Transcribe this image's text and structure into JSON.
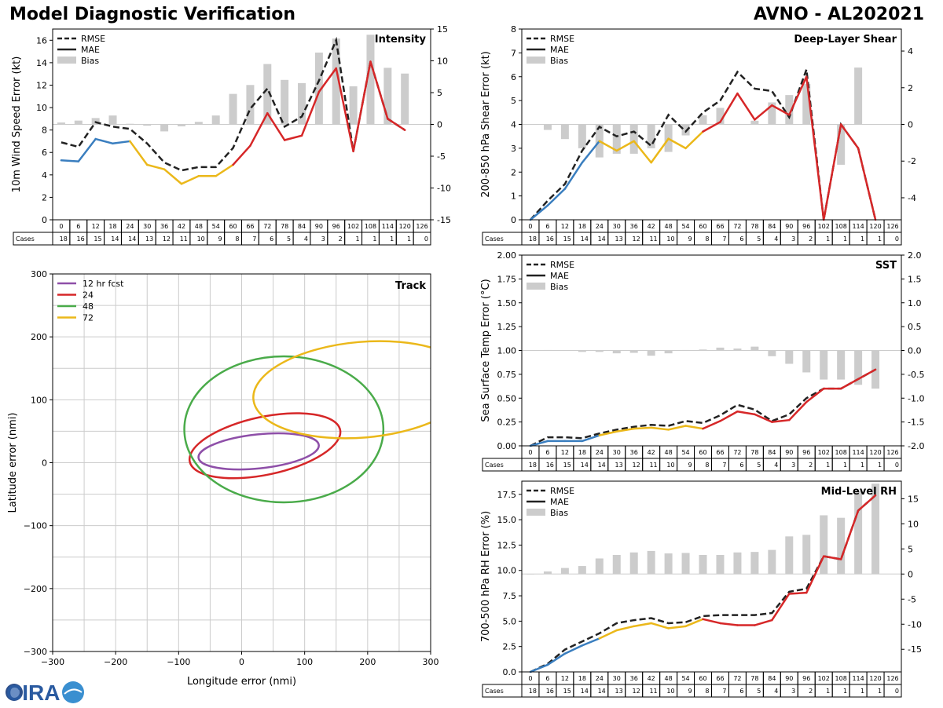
{
  "header": {
    "title": "Model Diagnostic Verification",
    "storm": "AVNO - AL202021"
  },
  "colors": {
    "rmse": "#222222",
    "bias": "#cccccc",
    "early": "#3a7ebf",
    "mid": "#ebb81a",
    "late": "#d62728",
    "track12": "#8e4fa8",
    "track24": "#d62728",
    "track48": "#4aab4a",
    "track72": "#ebb81a",
    "grid": "#cccccc"
  },
  "table": {
    "cases_label": "Cases",
    "hours": [
      "0",
      "6",
      "12",
      "18",
      "24",
      "30",
      "36",
      "42",
      "48",
      "54",
      "60",
      "66",
      "72",
      "78",
      "84",
      "90",
      "96",
      "102",
      "108",
      "114",
      "120",
      "126"
    ],
    "cases_full": [
      "18",
      "16",
      "15",
      "14",
      "14",
      "13",
      "12",
      "11",
      "10",
      "9",
      "8",
      "7",
      "6",
      "5",
      "4",
      "3",
      "2",
      "1",
      "1",
      "1",
      "1",
      "0"
    ]
  },
  "legend": {
    "rmse": "RMSE",
    "mae": "MAE",
    "bias": "Bias"
  },
  "logo": {
    "text": "CIRA"
  },
  "chart_data": [
    {
      "id": "intensity",
      "type": "line",
      "panel_label": "Intensity",
      "ylabel": "10m Wind Speed Error (kt)",
      "ylim": [
        0,
        17
      ],
      "yticks": [
        0,
        2,
        4,
        6,
        8,
        10,
        12,
        14,
        16
      ],
      "y2lim": [
        -15,
        15
      ],
      "y2ticks": [
        -15,
        -10,
        -5,
        0,
        5,
        10,
        15
      ],
      "x": [
        0,
        6,
        12,
        18,
        24,
        30,
        36,
        42,
        48,
        54,
        60,
        66,
        72,
        78,
        84,
        90,
        96,
        102,
        108,
        114,
        120
      ],
      "rmse": [
        6.9,
        6.5,
        8.7,
        8.3,
        8.1,
        6.8,
        5.1,
        4.4,
        4.7,
        4.7,
        6.4,
        9.9,
        11.7,
        8.3,
        9.2,
        12.4,
        16.0,
        6.1,
        14.1,
        9.0,
        8.0
      ],
      "mae": [
        5.3,
        5.2,
        7.2,
        6.8,
        7.0,
        4.9,
        4.5,
        3.2,
        3.9,
        3.9,
        4.9,
        6.6,
        9.5,
        7.1,
        7.5,
        11.4,
        13.5,
        6.1,
        14.1,
        9.0,
        8.0
      ],
      "bias": [
        0.3,
        0.6,
        1.0,
        1.4,
        0.1,
        -0.2,
        -1.1,
        -0.3,
        0.4,
        1.4,
        4.8,
        6.2,
        9.5,
        7.0,
        6.5,
        11.3,
        13.5,
        6.0,
        14.1,
        8.9,
        8.0
      ]
    },
    {
      "id": "shear",
      "type": "line",
      "panel_label": "Deep-Layer Shear",
      "ylabel": "200-850 hPa Shear Error (kt)",
      "ylim": [
        0,
        8
      ],
      "yticks": [
        0,
        1,
        2,
        3,
        4,
        5,
        6,
        7,
        8
      ],
      "y2lim": [
        -5.2,
        5.2
      ],
      "y2ticks": [
        -4,
        -2,
        0,
        2,
        4
      ],
      "x": [
        0,
        6,
        12,
        18,
        24,
        30,
        36,
        42,
        48,
        54,
        60,
        66,
        72,
        78,
        84,
        90,
        96,
        102,
        108,
        114,
        120
      ],
      "rmse": [
        0.0,
        0.8,
        1.5,
        2.9,
        3.9,
        3.5,
        3.7,
        3.1,
        4.4,
        3.7,
        4.5,
        5.0,
        6.2,
        5.5,
        5.4,
        4.3,
        6.3,
        0.0,
        4.0,
        3.0,
        0.0
      ],
      "mae": [
        0.0,
        0.6,
        1.3,
        2.4,
        3.3,
        2.9,
        3.3,
        2.4,
        3.4,
        3.0,
        3.7,
        4.1,
        5.3,
        4.2,
        4.8,
        4.4,
        6.0,
        0.0,
        4.0,
        3.0,
        0.0
      ],
      "bias": [
        0.0,
        -0.3,
        -0.8,
        -1.3,
        -1.8,
        -1.6,
        -1.6,
        -1.3,
        -1.5,
        -0.6,
        0.5,
        0.9,
        0.0,
        0.2,
        1.2,
        1.6,
        2.2,
        0.0,
        -2.2,
        3.1,
        0.0
      ]
    },
    {
      "id": "sst",
      "type": "line",
      "panel_label": "SST",
      "ylabel": "Sea Surface Temp Error (°C)",
      "ylim": [
        0,
        2.0
      ],
      "yticks": [
        "0.00",
        "0.25",
        "0.50",
        "0.75",
        "1.00",
        "1.25",
        "1.50",
        "1.75",
        "2.00"
      ],
      "y2lim": [
        -2.0,
        2.0
      ],
      "y2ticks": [
        "-2.0",
        "-1.5",
        "-1.0",
        "-0.5",
        "0.0",
        "0.5",
        "1.0",
        "1.5",
        "2.0"
      ],
      "x": [
        0,
        6,
        12,
        18,
        24,
        30,
        36,
        42,
        48,
        54,
        60,
        66,
        72,
        78,
        84,
        90,
        96,
        102,
        108,
        114,
        120
      ],
      "rmse": [
        0.0,
        0.09,
        0.09,
        0.08,
        0.13,
        0.17,
        0.2,
        0.22,
        0.21,
        0.26,
        0.24,
        0.32,
        0.43,
        0.38,
        0.26,
        0.33,
        0.5,
        0.6,
        0.6,
        0.7,
        0.8
      ],
      "mae": [
        0.0,
        0.05,
        0.05,
        0.05,
        0.11,
        0.15,
        0.18,
        0.19,
        0.17,
        0.21,
        0.18,
        0.26,
        0.36,
        0.33,
        0.25,
        0.27,
        0.46,
        0.6,
        0.6,
        0.7,
        0.8
      ],
      "bias": [
        0.0,
        0.01,
        -0.01,
        -0.03,
        -0.03,
        -0.06,
        -0.05,
        -0.11,
        -0.06,
        0.01,
        0.02,
        0.06,
        0.04,
        0.08,
        -0.12,
        -0.28,
        -0.46,
        -0.61,
        -0.61,
        -0.72,
        -0.8
      ]
    },
    {
      "id": "rh",
      "type": "line",
      "panel_label": "Mid-Level RH",
      "ylabel": "700-500 hPa RH Error (%)",
      "ylim": [
        0,
        18.8
      ],
      "yticks": [
        "0.0",
        "2.5",
        "5.0",
        "7.5",
        "10.0",
        "12.5",
        "15.0",
        "17.5"
      ],
      "y2lim": [
        -19.5,
        18.5
      ],
      "y2ticks": [
        -15,
        -10,
        -5,
        0,
        5,
        10,
        15
      ],
      "x": [
        0,
        6,
        12,
        18,
        24,
        30,
        36,
        42,
        48,
        54,
        60,
        66,
        72,
        78,
        84,
        90,
        96,
        102,
        108,
        114,
        120
      ],
      "rmse": [
        0.0,
        0.8,
        2.2,
        3.0,
        3.8,
        4.8,
        5.1,
        5.3,
        4.8,
        4.9,
        5.5,
        5.6,
        5.6,
        5.6,
        5.8,
        7.9,
        8.2,
        11.4,
        11.1,
        15.9,
        17.4
      ],
      "mae": [
        0.0,
        0.7,
        1.8,
        2.6,
        3.3,
        4.1,
        4.5,
        4.8,
        4.3,
        4.5,
        5.2,
        4.8,
        4.6,
        4.6,
        5.1,
        7.7,
        7.8,
        11.4,
        11.1,
        15.9,
        17.4
      ],
      "bias": [
        0.0,
        0.5,
        1.2,
        1.6,
        3.1,
        3.8,
        4.3,
        4.6,
        4.1,
        4.2,
        3.8,
        3.8,
        4.3,
        4.4,
        4.8,
        7.5,
        7.8,
        11.7,
        11.2,
        16.5,
        18.0
      ]
    },
    {
      "id": "track",
      "type": "scatter",
      "panel_label": "Track",
      "xlabel": "Longitude error (nmi)",
      "ylabel": "Latitude error (nmi)",
      "xlim": [
        -300,
        300
      ],
      "ylim": [
        -300,
        300
      ],
      "xticks": [
        -300,
        -200,
        -100,
        0,
        100,
        200,
        300
      ],
      "yticks": [
        -300,
        -200,
        -100,
        0,
        100,
        200,
        300
      ],
      "legend": [
        "12 hr fcst",
        "24",
        "48",
        "72"
      ],
      "ellipses": [
        {
          "label": "12 hr fcst",
          "cx": 27,
          "cy": 18,
          "rx": 96,
          "ry": 27,
          "angle": 6
        },
        {
          "label": "24",
          "cx": 37,
          "cy": 27,
          "rx": 122,
          "ry": 46,
          "angle": 12
        },
        {
          "label": "48",
          "cx": 67,
          "cy": 53,
          "rx": 158,
          "ry": 116,
          "angle": 0
        },
        {
          "label": "72",
          "cx": 192,
          "cy": 116,
          "rx": 174,
          "ry": 76,
          "angle": 5
        }
      ]
    }
  ]
}
